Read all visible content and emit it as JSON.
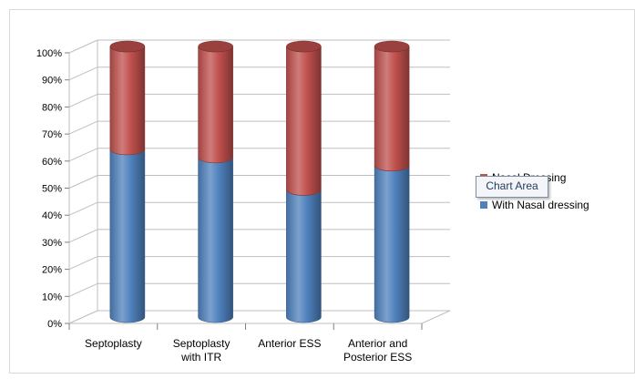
{
  "chart_data": {
    "type": "bar",
    "stacked": "percent",
    "three_d": true,
    "categories": [
      "Septoplasty",
      "Septoplasty with ITR",
      "Anterior ESS",
      "Anterior and Posterior ESS"
    ],
    "category_lines": [
      [
        "Septoplasty"
      ],
      [
        "Septoplasty",
        "with ITR"
      ],
      [
        "Anterior ESS"
      ],
      [
        "Anterior and",
        "Posterior ESS"
      ]
    ],
    "series": [
      {
        "name": "With Nasal dressing",
        "values": [
          62,
          59,
          47,
          56
        ],
        "color": "#4f81bd"
      },
      {
        "name": "Nasal Dressing",
        "values": [
          38,
          41,
          53,
          44
        ],
        "color": "#c0504d"
      }
    ],
    "yticks": [
      "0%",
      "10%",
      "20%",
      "30%",
      "40%",
      "50%",
      "60%",
      "70%",
      "80%",
      "90%",
      "100%"
    ],
    "ylim": [
      0,
      100
    ],
    "grid": true,
    "legend_position": "right",
    "legend": [
      {
        "label": "Nasal Dressing",
        "color": "#c0504d"
      },
      {
        "label": "With Nasal dressing",
        "color": "#4f81bd"
      }
    ],
    "tooltip": "Chart Area"
  }
}
